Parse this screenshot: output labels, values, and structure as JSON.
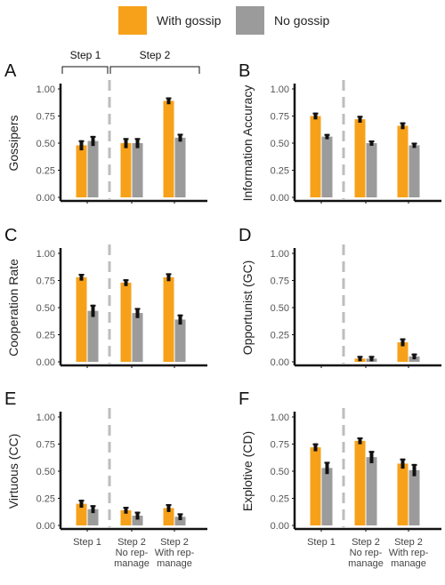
{
  "legend": {
    "with_label": "With gossip",
    "without_label": "No gossip"
  },
  "colors": {
    "with_gossip": "#F7A11A",
    "no_gossip": "#9B9B9B",
    "axis": "#111111",
    "divider": "#BDBDBD"
  },
  "step_brackets": {
    "step1": "Step 1",
    "step2": "Step 2"
  },
  "x_categories": [
    [
      "Step 1"
    ],
    [
      "Step 2",
      "No rep-",
      "manage"
    ],
    [
      "Step 2",
      "With rep-",
      "manage"
    ]
  ],
  "chart_data": [
    {
      "type": "bar",
      "panel": "A",
      "ylabel": "Gossipers",
      "ylim": [
        0,
        1
      ],
      "yticks": [
        "0.00",
        "0.25",
        "0.50",
        "0.75",
        "1.00"
      ],
      "categories": [
        "Step 1",
        "Step 2 No rep-manage",
        "Step 2 With rep-manage"
      ],
      "series": [
        {
          "name": "With gossip",
          "values": [
            0.48,
            0.5,
            0.89
          ],
          "err": [
            0.03,
            0.03,
            0.015
          ]
        },
        {
          "name": "No gossip",
          "values": [
            0.52,
            0.5,
            0.55
          ],
          "err": [
            0.03,
            0.03,
            0.02
          ]
        }
      ]
    },
    {
      "type": "bar",
      "panel": "B",
      "ylabel": "Information Accuracy",
      "ylim": [
        0,
        1
      ],
      "yticks": [
        "0.00",
        "0.25",
        "0.50",
        "0.75",
        "1.00"
      ],
      "categories": [
        "Step 1",
        "Step 2 No rep-manage",
        "Step 2 With rep-manage"
      ],
      "series": [
        {
          "name": "With gossip",
          "values": [
            0.75,
            0.72,
            0.66
          ],
          "err": [
            0.015,
            0.015,
            0.015
          ]
        },
        {
          "name": "No gossip",
          "values": [
            0.56,
            0.5,
            0.48
          ],
          "err": [
            0.008,
            0.008,
            0.008
          ]
        }
      ]
    },
    {
      "type": "bar",
      "panel": "C",
      "ylabel": "Cooperation Rate",
      "ylim": [
        0,
        1
      ],
      "yticks": [
        "0.00",
        "0.25",
        "0.50",
        "0.75",
        "1.00"
      ],
      "categories": [
        "Step 1",
        "Step 2 No rep-manage",
        "Step 2 With rep-manage"
      ],
      "series": [
        {
          "name": "With gossip",
          "values": [
            0.78,
            0.73,
            0.78
          ],
          "err": [
            0.015,
            0.015,
            0.02
          ]
        },
        {
          "name": "No gossip",
          "values": [
            0.47,
            0.45,
            0.39
          ],
          "err": [
            0.04,
            0.03,
            0.03
          ]
        }
      ]
    },
    {
      "type": "bar",
      "panel": "D",
      "ylabel": "Opportunist (GC)",
      "ylim": [
        0,
        1
      ],
      "yticks": [
        "0.00",
        "0.25",
        "0.50",
        "0.75",
        "1.00"
      ],
      "categories": [
        "Step 1",
        "Step 2 No rep-manage",
        "Step 2 With rep-manage"
      ],
      "series": [
        {
          "name": "With gossip",
          "values": [
            null,
            0.03,
            0.18
          ],
          "err": [
            null,
            0.008,
            0.02
          ]
        },
        {
          "name": "No gossip",
          "values": [
            null,
            0.03,
            0.05
          ],
          "err": [
            null,
            0.008,
            0.01
          ]
        }
      ]
    },
    {
      "type": "bar",
      "panel": "E",
      "ylabel": "Virtuous (CC)",
      "ylim": [
        0,
        1
      ],
      "yticks": [
        "0.00",
        "0.25",
        "0.50",
        "0.75",
        "1.00"
      ],
      "categories": [
        "Step 1",
        "Step 2 No rep-manage",
        "Step 2 With rep-manage"
      ],
      "series": [
        {
          "name": "With gossip",
          "values": [
            0.2,
            0.14,
            0.16
          ],
          "err": [
            0.02,
            0.015,
            0.02
          ]
        },
        {
          "name": "No gossip",
          "values": [
            0.15,
            0.09,
            0.08
          ],
          "err": [
            0.02,
            0.02,
            0.015
          ]
        }
      ]
    },
    {
      "type": "bar",
      "panel": "F",
      "ylabel": "Explotive (CD)",
      "ylim": [
        0,
        1
      ],
      "yticks": [
        "0.00",
        "0.25",
        "0.50",
        "0.75",
        "1.00"
      ],
      "categories": [
        "Step 1",
        "Step 2 No rep-manage",
        "Step 2 With rep-manage"
      ],
      "series": [
        {
          "name": "With gossip",
          "values": [
            0.72,
            0.78,
            0.57
          ],
          "err": [
            0.02,
            0.015,
            0.03
          ]
        },
        {
          "name": "No gossip",
          "values": [
            0.53,
            0.63,
            0.51
          ],
          "err": [
            0.04,
            0.04,
            0.04
          ]
        }
      ]
    }
  ]
}
